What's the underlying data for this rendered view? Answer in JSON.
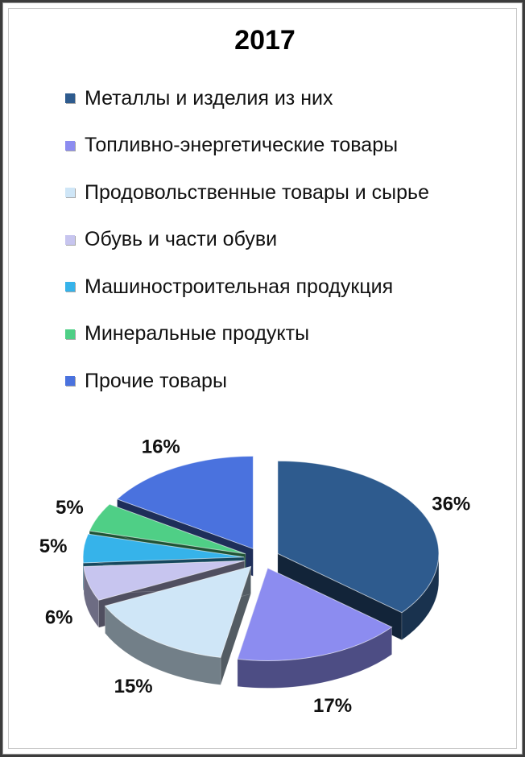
{
  "chart_data": {
    "type": "pie",
    "title": "2017",
    "categories": [
      "Металлы и изделия из них",
      "Топливно-энергетические товары",
      "Продовольственные товары и сырье",
      "Обувь и части обуви",
      "Машиностроительная продукция",
      "Минеральные продукты",
      "Прочие товары"
    ],
    "values": [
      36,
      17,
      15,
      6,
      5,
      5,
      16
    ],
    "labels": [
      "36%",
      "17%",
      "15%",
      "6%",
      "5%",
      "5%",
      "16%"
    ],
    "colors": [
      "#2e5b8e",
      "#8c8cf0",
      "#cfe6f7",
      "#c7c5ef",
      "#36b3ea",
      "#4fcf86",
      "#4a72de"
    ],
    "legend_position": "top",
    "style": "3d exploded"
  }
}
